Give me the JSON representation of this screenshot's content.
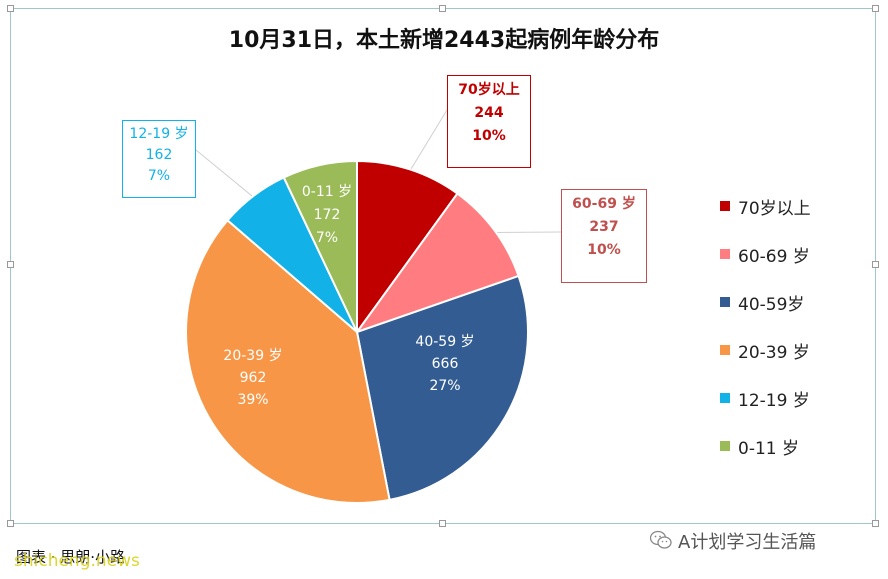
{
  "title": "10月31日，本土新增2443起病例年龄分布",
  "chart_data": {
    "type": "pie",
    "title": "10月31日，本土新增2443起病例年龄分布",
    "slices": [
      {
        "label": "70岁以上",
        "value": 244,
        "percent": "10%",
        "color": "#c00000"
      },
      {
        "label": "60-69 岁",
        "value": 237,
        "percent": "10%",
        "color": "#ff7c80"
      },
      {
        "label": "40-59岁",
        "value": 666,
        "percent": "27%",
        "color": "#335d92"
      },
      {
        "label": "20-39 岁",
        "value": 962,
        "percent": "39%",
        "color": "#f79646"
      },
      {
        "label": "12-19 岁",
        "value": 162,
        "percent": "7%",
        "color": "#12b2e8"
      },
      {
        "label": "0-11 岁",
        "value": 172,
        "percent": "7%",
        "color": "#9bbb59"
      }
    ],
    "legend_position": "right"
  },
  "callouts": {
    "c70": {
      "label": "70岁以上",
      "value": "244",
      "percent": "10%"
    },
    "c60": {
      "label": "60-69 岁",
      "value": "237",
      "percent": "10%"
    },
    "c12": {
      "label": "12-19 岁",
      "value": "162",
      "percent": "7%"
    }
  },
  "inner_labels": {
    "i40": {
      "label": "40-59 岁",
      "value": "666",
      "percent": "27%"
    },
    "i20": {
      "label": "20-39 岁",
      "value": "962",
      "percent": "39%"
    },
    "i0": {
      "label": "0-11 岁",
      "value": "172",
      "percent": "7%"
    }
  },
  "legend": [
    "70岁以上",
    "60-69 岁",
    "40-59岁",
    "20-39 岁",
    "12-19 岁",
    "0-11 岁"
  ],
  "watermark": "A计划学习生活篇",
  "credit": "图表 · 思朗·小路",
  "site": "shicheng.news",
  "colors": {
    "frame": "#9fc7c7",
    "c70_text": "#c00000",
    "c60_text": "#c0504d",
    "c12_text": "#12b2e8"
  }
}
